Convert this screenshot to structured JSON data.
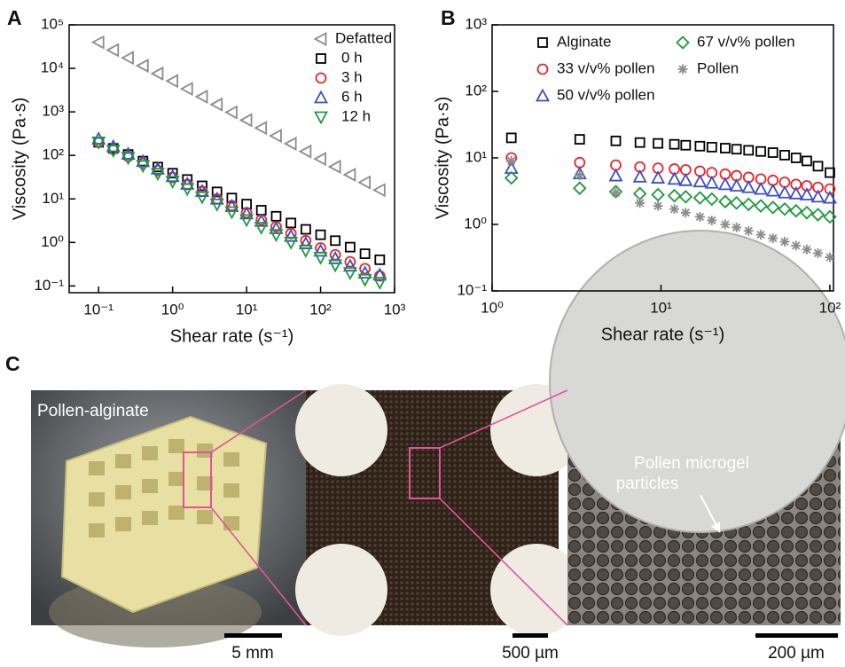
{
  "chart_data": [
    {
      "type": "scatter",
      "panel_label": "A",
      "xlabel": "Shear rate (s⁻¹)",
      "ylabel": "Viscosity (Pa·s)",
      "log_x": true,
      "log_y": true,
      "legend": "upper right",
      "legend_columns": 1,
      "xlim": [
        0.04,
        1000
      ],
      "ylim": [
        0.07,
        100000
      ],
      "xticks": [
        {
          "value": 0.1,
          "label": "10⁻¹"
        },
        {
          "value": 1,
          "label": "10⁰"
        },
        {
          "value": 10,
          "label": "10¹"
        },
        {
          "value": 100,
          "label": "10²"
        },
        {
          "value": 1000,
          "label": "10³"
        }
      ],
      "yticks": [
        {
          "value": 0.1,
          "label": "10⁻¹"
        },
        {
          "value": 1,
          "label": "10⁰"
        },
        {
          "value": 10,
          "label": "10¹"
        },
        {
          "value": 100,
          "label": "10²"
        },
        {
          "value": 1000,
          "label": "10³"
        },
        {
          "value": 10000,
          "label": "10⁴"
        },
        {
          "value": 100000,
          "label": "10⁵"
        }
      ],
      "x": [
        0.1,
        0.158,
        0.251,
        0.398,
        0.631,
        1,
        1.58,
        2.51,
        3.98,
        6.31,
        10,
        15.8,
        25.1,
        39.8,
        63.1,
        100,
        158,
        251,
        398,
        631
      ],
      "series": [
        {
          "name": "Defatted",
          "color": "#8c8c8c",
          "marker": "triangle-left",
          "values": [
            39800,
            26300,
            17400,
            11500,
            7590,
            5130,
            3390,
            2240,
            1480,
            977,
            646,
            427,
            282,
            186,
            123,
            83,
            55,
            36,
            24,
            16
          ]
        },
        {
          "name": "0 h",
          "color": "#000000",
          "marker": "square",
          "values": [
            200,
            145,
            105,
            74,
            54,
            39,
            28,
            20,
            14.5,
            10.5,
            7.6,
            5.5,
            4,
            2.8,
            2,
            1.5,
            1.1,
            0.78,
            0.55,
            0.4
          ]
        },
        {
          "name": "3 h",
          "color": "#e8262b",
          "marker": "circle",
          "values": [
            200,
            138,
            95,
            66,
            45,
            31,
            21.5,
            15,
            10,
            7,
            4.8,
            3.3,
            2.3,
            1.6,
            1.1,
            0.75,
            0.52,
            0.36,
            0.25,
            0.17
          ]
        },
        {
          "name": "6 h",
          "color": "#3a4fc4",
          "marker": "triangle-up",
          "values": [
            240,
            160,
            108,
            73,
            49,
            33,
            22,
            15,
            10,
            6.8,
            4.6,
            3.1,
            2.1,
            1.4,
            0.95,
            0.64,
            0.43,
            0.29,
            0.2,
            0.18
          ]
        },
        {
          "name": "12 h",
          "color": "#1d9a3a",
          "marker": "triangle-down",
          "values": [
            200,
            130,
            88,
            58,
            38,
            25,
            17,
            11,
            7.5,
            5,
            3.3,
            2.2,
            1.5,
            1,
            0.65,
            0.45,
            0.3,
            0.2,
            0.14,
            0.12
          ]
        }
      ]
    },
    {
      "type": "scatter",
      "panel_label": "B",
      "xlabel": "Shear rate (s⁻¹)",
      "ylabel": "Viscosity (Pa·s)",
      "log_x": true,
      "log_y": true,
      "legend": "upper",
      "legend_columns": 2,
      "xlim": [
        1,
        105
      ],
      "ylim": [
        0.1,
        1000
      ],
      "xticks": [
        {
          "value": 1,
          "label": "10⁰"
        },
        {
          "value": 10,
          "label": "10¹"
        },
        {
          "value": 100,
          "label": "10²"
        }
      ],
      "yticks": [
        {
          "value": 0.1,
          "label": "10⁻¹"
        },
        {
          "value": 1,
          "label": "10⁰"
        },
        {
          "value": 10,
          "label": "10¹"
        },
        {
          "value": 100,
          "label": "10²"
        },
        {
          "value": 1000,
          "label": "10³"
        }
      ],
      "x": [
        1.3,
        3.3,
        5.4,
        7.5,
        9.6,
        12,
        14,
        17,
        20,
        24,
        28,
        33,
        39,
        46,
        54,
        63,
        73,
        85,
        100
      ],
      "series": [
        {
          "name": "Alginate",
          "color": "#000000",
          "marker": "square",
          "values": [
            20,
            19,
            18,
            17,
            16.5,
            16,
            15.5,
            15,
            14.5,
            14,
            13.5,
            13,
            12.5,
            12,
            11,
            10,
            9,
            7.5,
            6
          ]
        },
        {
          "name": "33 v/v% pollen",
          "color": "#e8262b",
          "marker": "circle",
          "values": [
            10,
            8.5,
            7.8,
            7.3,
            7,
            6.8,
            6.6,
            6.3,
            6,
            5.7,
            5.4,
            5.1,
            4.8,
            4.6,
            4.3,
            4,
            3.8,
            3.6,
            3.4
          ]
        },
        {
          "name": "50 v/v% pollen",
          "color": "#3a4fc4",
          "marker": "triangle-up",
          "values": [
            7,
            5.8,
            5.4,
            5.2,
            5,
            4.8,
            4.6,
            4.4,
            4.2,
            4,
            3.8,
            3.6,
            3.4,
            3.2,
            3,
            2.9,
            2.8,
            2.6,
            2.5
          ]
        },
        {
          "name": "67 v/v% pollen",
          "color": "#1d9a3a",
          "marker": "diamond",
          "values": [
            5,
            3.5,
            3.1,
            2.9,
            2.8,
            2.7,
            2.6,
            2.5,
            2.4,
            2.2,
            2.1,
            2,
            1.9,
            1.8,
            1.7,
            1.6,
            1.5,
            1.4,
            1.3
          ]
        },
        {
          "name": "Pollen",
          "color": "#8c8c8c",
          "marker": "asterisk",
          "values": [
            9,
            5.5,
            3,
            2.1,
            1.9,
            1.7,
            1.5,
            1.3,
            1.15,
            1,
            0.9,
            0.8,
            0.7,
            0.62,
            0.55,
            0.48,
            0.42,
            0.37,
            0.32
          ]
        }
      ]
    }
  ],
  "panel_c": {
    "panel_label": "C",
    "image_1_label": "Pollen-alginate",
    "image_3_label": [
      "Pollen microgel",
      "particles"
    ],
    "scale_bars": [
      "5 mm",
      "500 µm",
      "200 µm"
    ]
  }
}
